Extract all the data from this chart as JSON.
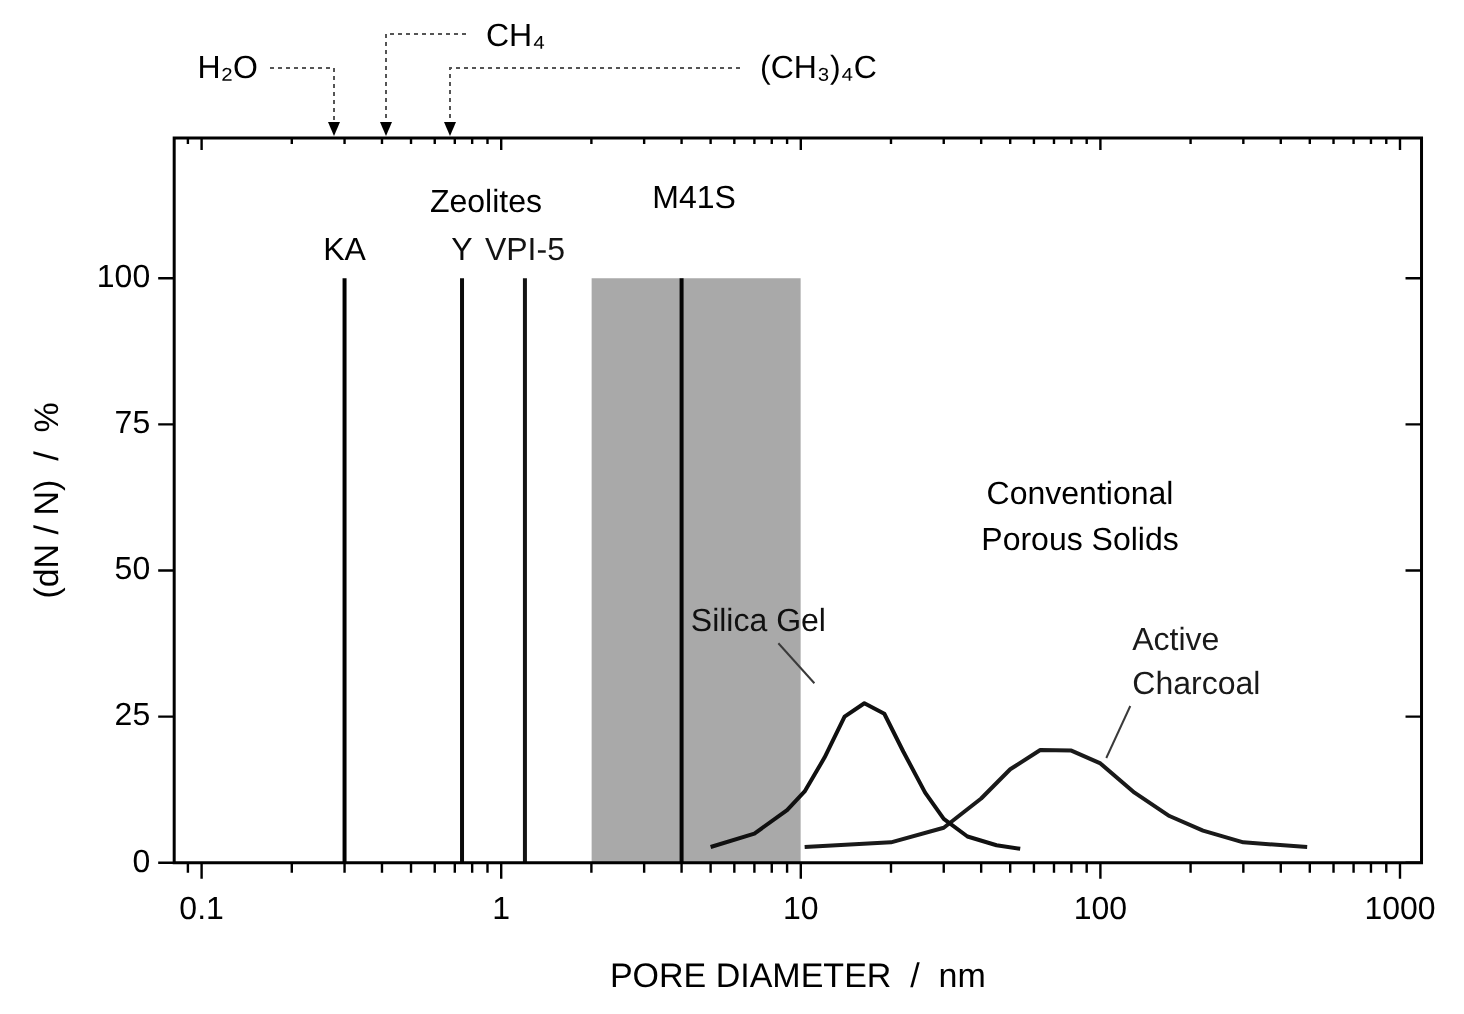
{
  "chart_data": {
    "type": "line",
    "xlabel": "PORE DIAMETER  /  nm",
    "ylabel": "(dN / N)  /  %",
    "log": "x",
    "grid": false,
    "legend": false,
    "xlim": [
      0.081,
      1180
    ],
    "ylim": [
      0,
      124
    ],
    "xticks": [
      {
        "value": 0.09,
        "label": null
      },
      0.1,
      {
        "value": 0.2,
        "label": null
      },
      {
        "value": 0.3,
        "label": null
      },
      {
        "value": 0.4,
        "label": null
      },
      {
        "value": 0.5,
        "label": null
      },
      {
        "value": 0.6,
        "label": null
      },
      {
        "value": 0.7,
        "label": null
      },
      {
        "value": 0.8,
        "label": null
      },
      {
        "value": 0.9,
        "label": null
      },
      1,
      {
        "value": 2,
        "label": null
      },
      {
        "value": 3,
        "label": null
      },
      {
        "value": 4,
        "label": null
      },
      {
        "value": 5,
        "label": null
      },
      {
        "value": 6,
        "label": null
      },
      {
        "value": 7,
        "label": null
      },
      {
        "value": 8,
        "label": null
      },
      {
        "value": 9,
        "label": null
      },
      10,
      {
        "value": 20,
        "label": null
      },
      {
        "value": 30,
        "label": null
      },
      {
        "value": 40,
        "label": null
      },
      {
        "value": 50,
        "label": null
      },
      {
        "value": 60,
        "label": null
      },
      {
        "value": 70,
        "label": null
      },
      {
        "value": 80,
        "label": null
      },
      {
        "value": 90,
        "label": null
      },
      100,
      {
        "value": 200,
        "label": null
      },
      {
        "value": 300,
        "label": null
      },
      {
        "value": 400,
        "label": null
      },
      {
        "value": 500,
        "label": null
      },
      {
        "value": 600,
        "label": null
      },
      {
        "value": 700,
        "label": null
      },
      {
        "value": 800,
        "label": null
      },
      {
        "value": 900,
        "label": null
      },
      1000
    ],
    "yticks": [
      0,
      25,
      50,
      75,
      100
    ],
    "series": [
      {
        "type": "area",
        "color": "#a9a9a9",
        "x": [
          2,
          10
        ],
        "values": [
          100,
          100
        ]
      },
      {
        "name": "KA",
        "color": "#000000",
        "x": [
          0.3,
          0.3
        ],
        "values": [
          0,
          100
        ]
      },
      {
        "name": "Y",
        "color": "#0a0a0a",
        "x": [
          0.74,
          0.74
        ],
        "values": [
          0,
          100
        ]
      },
      {
        "name": "VPI-5",
        "color": "#141414",
        "x": [
          1.2,
          1.2
        ],
        "values": [
          0,
          100
        ]
      },
      {
        "color": "#050505",
        "x": [
          4,
          4
        ],
        "values": [
          0,
          100
        ]
      },
      {
        "name": "Silica Gel",
        "color": "#101010",
        "x": [
          5,
          7,
          9,
          10.3,
          12,
          14,
          16.3,
          19,
          22,
          26,
          30,
          36,
          45,
          54
        ],
        "values": [
          2.7,
          5,
          9,
          12.2,
          18,
          25,
          27.3,
          25.5,
          19,
          12,
          7.5,
          4.5,
          3,
          2.4
        ]
      },
      {
        "name": "Active Charcoal",
        "color": "#1a1a1a",
        "x": [
          10.3,
          20,
          30,
          40,
          50,
          63,
          80,
          100,
          130,
          170,
          220,
          300,
          490
        ],
        "values": [
          2.7,
          3.5,
          6,
          11,
          16,
          19.3,
          19.2,
          17,
          12,
          8,
          5.5,
          3.5,
          2.7
        ]
      }
    ],
    "annotations": [
      "H₂O",
      "CH₄",
      "(CH₃)₄C",
      "Zeolites",
      "M41S",
      "Conventional\nPorous Solids"
    ]
  }
}
